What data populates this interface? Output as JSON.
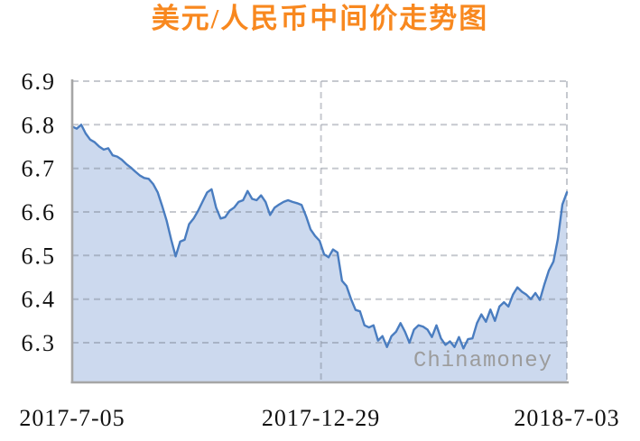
{
  "page": {
    "background": "#ffffff"
  },
  "chart_data": {
    "type": "area",
    "title": "美元/人民币中间价走势图",
    "title_color": "#f8881f",
    "watermark": "Chinamoney",
    "x_tick_labels": [
      "2017-7-05",
      "2017-12-29",
      "2018-7-03"
    ],
    "x_tick_positions": [
      0,
      0.503,
      1
    ],
    "y_tick_labels": [
      "6.9",
      "6.8",
      "6.7",
      "6.6",
      "6.5",
      "6.4",
      "6.3"
    ],
    "ylim": [
      6.2,
      6.9
    ],
    "grid": "dashed",
    "legend_position": "none",
    "line_color": "#4a7dc0",
    "fill_color": "#ccd9ee",
    "axis_color": "#a6a6a6",
    "series": [
      {
        "name": "美元/人民币中间价",
        "x_start_label": "2017-7-05",
        "x_end_label": "2018-7-03",
        "values": [
          6.796,
          6.791,
          6.8,
          6.78,
          6.766,
          6.76,
          6.75,
          6.743,
          6.746,
          6.73,
          6.727,
          6.72,
          6.71,
          6.702,
          6.693,
          6.684,
          6.678,
          6.676,
          6.664,
          6.645,
          6.614,
          6.58,
          6.537,
          6.498,
          6.532,
          6.536,
          6.572,
          6.585,
          6.603,
          6.624,
          6.645,
          6.652,
          6.61,
          6.585,
          6.588,
          6.603,
          6.61,
          6.623,
          6.627,
          6.648,
          6.63,
          6.627,
          6.638,
          6.623,
          6.593,
          6.61,
          6.617,
          6.623,
          6.627,
          6.623,
          6.62,
          6.616,
          6.59,
          6.56,
          6.545,
          6.534,
          6.503,
          6.496,
          6.514,
          6.507,
          6.442,
          6.43,
          6.4,
          6.375,
          6.372,
          6.34,
          6.335,
          6.34,
          6.305,
          6.315,
          6.29,
          6.315,
          6.325,
          6.345,
          6.325,
          6.3,
          6.33,
          6.34,
          6.337,
          6.33,
          6.313,
          6.34,
          6.31,
          6.295,
          6.303,
          6.29,
          6.313,
          6.287,
          6.308,
          6.31,
          6.345,
          6.365,
          6.348,
          6.376,
          6.35,
          6.383,
          6.393,
          6.383,
          6.41,
          6.427,
          6.417,
          6.41,
          6.4,
          6.414,
          6.398,
          6.434,
          6.466,
          6.486,
          6.538,
          6.617,
          6.645
        ]
      }
    ]
  }
}
